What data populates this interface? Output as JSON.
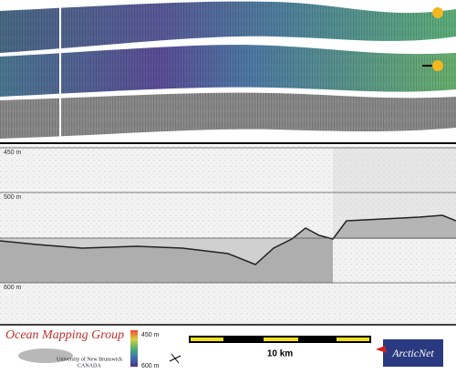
{
  "profile": {
    "depth_labels": [
      "450 m",
      "500 m",
      "600 m"
    ]
  },
  "footer": {
    "group": "Ocean Mapping Group",
    "university": "University of New Brunswick",
    "country": "CANADA",
    "color_scale": {
      "top": "450 m",
      "bottom": "600 m"
    },
    "scale_bar": "10 km",
    "partner": "ArcticNet"
  }
}
